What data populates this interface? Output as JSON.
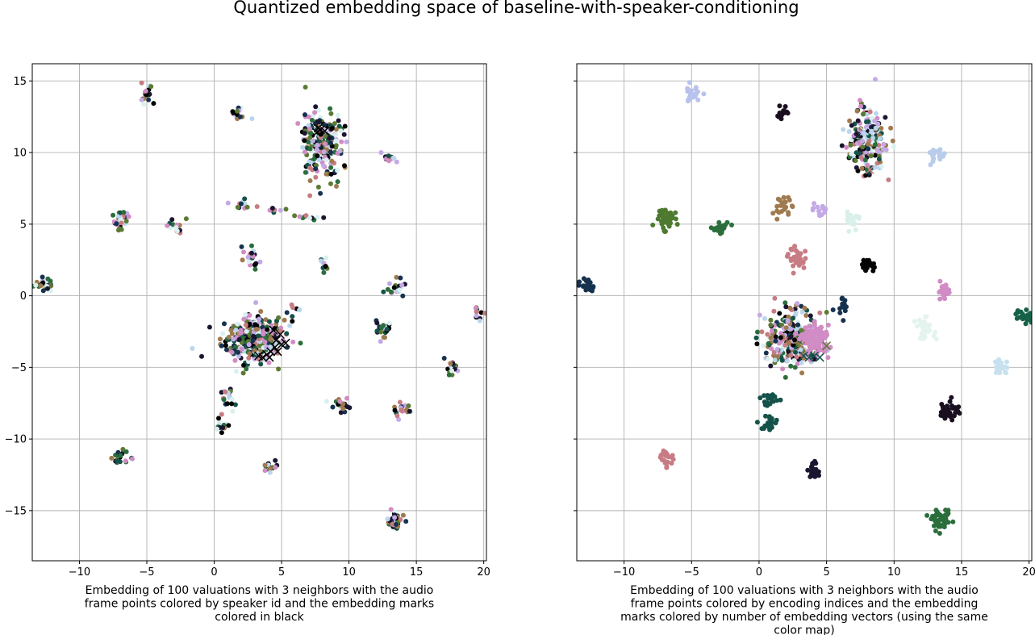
{
  "figure": {
    "title": "Quantized embedding space of baseline-with-speaker-conditioning"
  },
  "chart_data": [
    {
      "type": "scatter",
      "title": "",
      "xlabel": "Embedding of 100 valuations with 3 neighbors with the audio frame points colored by speaker id and the embedding marks colored in black",
      "xlabel_lines": [
        "Embedding of 100 valuations with 3 neighbors with the audio",
        "frame points colored by speaker id and the embedding marks",
        "colored in black"
      ],
      "ylabel": "",
      "xlim": [
        -13.5,
        20.2
      ],
      "ylim": [
        -18.5,
        16.2
      ],
      "xticks": [
        -10,
        -5,
        0,
        5,
        10,
        15,
        20
      ],
      "yticks": [
        15,
        10,
        5,
        0,
        -5,
        -10,
        -15
      ],
      "xtick_labels": [
        "−10",
        "−5",
        "0",
        "5",
        "10",
        "15",
        "20"
      ],
      "ytick_labels": [
        "15",
        "10",
        "5",
        "0",
        "−5",
        "−10",
        "−15"
      ],
      "grid": true,
      "point_coloring": "speaker id",
      "embedding_mark_color": "#000000",
      "palette": [
        "#1a1530",
        "#16324f",
        "#15534a",
        "#2b6e3c",
        "#5b7a33",
        "#a07a4f",
        "#c77c83",
        "#d18cc5",
        "#c3a9e6",
        "#b9d6ec",
        "#d9f0ef",
        "#050505"
      ],
      "clusters": [
        {
          "x": -12.6,
          "y": 0.8,
          "sx": 0.4,
          "sy": 0.25,
          "n": 26
        },
        {
          "x": -7.0,
          "y": 5.3,
          "sx": 0.35,
          "sy": 0.3,
          "n": 30
        },
        {
          "x": -7.0,
          "y": -11.4,
          "sx": 0.35,
          "sy": 0.35,
          "n": 22
        },
        {
          "x": -5.0,
          "y": 14.1,
          "sx": 0.25,
          "sy": 0.3,
          "n": 18
        },
        {
          "x": -2.9,
          "y": 4.8,
          "sx": 0.35,
          "sy": 0.3,
          "n": 14
        },
        {
          "x": 1.8,
          "y": 12.8,
          "sx": 0.35,
          "sy": 0.4,
          "n": 14
        },
        {
          "x": 1.9,
          "y": 6.4,
          "sx": 0.5,
          "sy": 0.2,
          "n": 10
        },
        {
          "x": 4.4,
          "y": 6.0,
          "sx": 0.35,
          "sy": 0.2,
          "n": 7
        },
        {
          "x": 7.0,
          "y": 5.5,
          "sx": 0.5,
          "sy": 0.12,
          "n": 10
        },
        {
          "x": 2.8,
          "y": 2.7,
          "sx": 0.3,
          "sy": 0.35,
          "n": 22
        },
        {
          "x": 8.1,
          "y": 2.1,
          "sx": 0.2,
          "sy": 0.2,
          "n": 10
        },
        {
          "x": 2.8,
          "y": -3.0,
          "sx": 1.1,
          "sy": 0.8,
          "n": 360
        },
        {
          "x": 5.8,
          "y": -0.9,
          "sx": 0.25,
          "sy": 0.3,
          "n": 7
        },
        {
          "x": 8.0,
          "y": 10.7,
          "sx": 0.8,
          "sy": 1.1,
          "n": 220
        },
        {
          "x": 12.9,
          "y": 9.6,
          "sx": 0.3,
          "sy": 0.25,
          "n": 12
        },
        {
          "x": 13.5,
          "y": 0.5,
          "sx": 0.3,
          "sy": 0.3,
          "n": 22
        },
        {
          "x": 12.5,
          "y": -2.4,
          "sx": 0.3,
          "sy": 0.3,
          "n": 22
        },
        {
          "x": 17.7,
          "y": -5.1,
          "sx": 0.3,
          "sy": 0.3,
          "n": 20
        },
        {
          "x": 19.6,
          "y": -1.3,
          "sx": 0.2,
          "sy": 0.3,
          "n": 10
        },
        {
          "x": 9.5,
          "y": -7.6,
          "sx": 0.35,
          "sy": 0.25,
          "n": 22
        },
        {
          "x": 14.0,
          "y": -8.0,
          "sx": 0.35,
          "sy": 0.3,
          "n": 22
        },
        {
          "x": 1.0,
          "y": -7.1,
          "sx": 0.35,
          "sy": 0.4,
          "n": 20
        },
        {
          "x": 0.5,
          "y": -9.1,
          "sx": 0.3,
          "sy": 0.2,
          "n": 14
        },
        {
          "x": 4.2,
          "y": -12.0,
          "sx": 0.3,
          "sy": 0.25,
          "n": 14
        },
        {
          "x": 13.5,
          "y": -15.7,
          "sx": 0.35,
          "sy": 0.35,
          "n": 34
        }
      ],
      "embedding_marks": [
        {
          "x": 4.4,
          "y": -2.4
        },
        {
          "x": 4.9,
          "y": -2.7
        },
        {
          "x": 4.6,
          "y": -3.1
        },
        {
          "x": 5.0,
          "y": -3.4
        },
        {
          "x": 4.5,
          "y": -3.6
        },
        {
          "x": 4.2,
          "y": -3.9
        },
        {
          "x": 3.9,
          "y": -4.1
        },
        {
          "x": 3.6,
          "y": -4.3
        },
        {
          "x": 3.3,
          "y": -4.2
        },
        {
          "x": 4.1,
          "y": -4.3
        },
        {
          "x": 4.7,
          "y": -3.9
        },
        {
          "x": 5.3,
          "y": -3.3
        },
        {
          "x": 7.6,
          "y": 11.4
        },
        {
          "x": 7.9,
          "y": 11.6
        },
        {
          "x": 8.2,
          "y": 11.5
        },
        {
          "x": 7.7,
          "y": 11.7
        }
      ]
    },
    {
      "type": "scatter",
      "title": "",
      "xlabel": "Embedding of 100 valuations with 3 neighbors with the audio frame points colored by encoding indices and the embedding marks colored by number of embedding vectors (using the same color map)",
      "xlabel_lines": [
        "Embedding of 100 valuations with 3 neighbors with the audio",
        "frame points colored by encoding indices and the embedding",
        "marks colored by number of embedding vectors (using the same",
        "color map)"
      ],
      "ylabel": "",
      "xlim": [
        -13.5,
        20.2
      ],
      "ylim": [
        -18.5,
        16.2
      ],
      "xticks": [
        -10,
        -5,
        0,
        5,
        10,
        15,
        20
      ],
      "yticks": [
        15,
        10,
        5,
        0,
        -5,
        -10,
        -15
      ],
      "xtick_labels": [
        "−10",
        "−5",
        "0",
        "5",
        "10",
        "15",
        "20"
      ],
      "ytick_labels": [],
      "grid": true,
      "point_coloring": "encoding indices",
      "palette": [
        "#1a1530",
        "#16324f",
        "#15534a",
        "#2b6e3c",
        "#5b7a33",
        "#a07a4f",
        "#c77c83",
        "#d18cc5",
        "#c3a9e6",
        "#b9d6ec",
        "#d9f0ef",
        "#050505"
      ],
      "clusters": [
        {
          "x": -12.6,
          "y": 0.7,
          "sx": 0.3,
          "sy": 0.3,
          "n": 26,
          "color": "#16324f"
        },
        {
          "x": -7.0,
          "y": 5.4,
          "sx": 0.35,
          "sy": 0.35,
          "n": 40,
          "color": "#4e7a30"
        },
        {
          "x": -2.9,
          "y": 4.7,
          "sx": 0.3,
          "sy": 0.25,
          "n": 26,
          "color": "#2b6e3c"
        },
        {
          "x": -5.0,
          "y": 14.0,
          "sx": 0.35,
          "sy": 0.3,
          "n": 26,
          "color": "#b8c2ec"
        },
        {
          "x": 1.8,
          "y": 12.8,
          "sx": 0.3,
          "sy": 0.2,
          "n": 20,
          "color": "#1a0f1f"
        },
        {
          "x": 1.7,
          "y": 6.2,
          "sx": 0.3,
          "sy": 0.35,
          "n": 22,
          "color": "#a07a4f"
        },
        {
          "x": 4.5,
          "y": 5.9,
          "sx": 0.25,
          "sy": 0.25,
          "n": 14,
          "color": "#c3a9e6"
        },
        {
          "x": 7.0,
          "y": 5.4,
          "sx": 0.3,
          "sy": 0.3,
          "n": 22,
          "color": "#d9f0ea"
        },
        {
          "x": 8.1,
          "y": 2.1,
          "sx": 0.25,
          "sy": 0.2,
          "n": 22,
          "color": "#050505"
        },
        {
          "x": 2.9,
          "y": 2.6,
          "sx": 0.35,
          "sy": 0.4,
          "n": 40,
          "color": "#c77c83"
        },
        {
          "x": 6.0,
          "y": -0.9,
          "sx": 0.3,
          "sy": 0.35,
          "n": 14,
          "color": "#16324f"
        },
        {
          "x": 2.5,
          "y": -3.0,
          "sx": 1.0,
          "sy": 0.9,
          "n": 320
        },
        {
          "x": 4.2,
          "y": -3.1,
          "sx": 0.5,
          "sy": 0.5,
          "n": 110,
          "color": "#d18cc5"
        },
        {
          "x": 8.0,
          "y": 10.9,
          "sx": 0.7,
          "sy": 1.1,
          "n": 220
        },
        {
          "x": 13.2,
          "y": 9.7,
          "sx": 0.3,
          "sy": 0.3,
          "n": 20,
          "color": "#b9ccec"
        },
        {
          "x": 13.6,
          "y": 0.3,
          "sx": 0.25,
          "sy": 0.3,
          "n": 22,
          "color": "#d18cc5"
        },
        {
          "x": 12.3,
          "y": -2.3,
          "sx": 0.35,
          "sy": 0.35,
          "n": 34,
          "color": "#e4f3ee"
        },
        {
          "x": 17.9,
          "y": -5.0,
          "sx": 0.3,
          "sy": 0.25,
          "n": 34,
          "color": "#c7e2ee"
        },
        {
          "x": 19.7,
          "y": -1.4,
          "sx": 0.35,
          "sy": 0.25,
          "n": 22,
          "color": "#176148"
        },
        {
          "x": 0.8,
          "y": -7.2,
          "sx": 0.35,
          "sy": 0.25,
          "n": 18,
          "color": "#15534a"
        },
        {
          "x": 0.8,
          "y": -8.9,
          "sx": 0.3,
          "sy": 0.3,
          "n": 22,
          "color": "#15534a"
        },
        {
          "x": 14.1,
          "y": -8.0,
          "sx": 0.35,
          "sy": 0.35,
          "n": 40,
          "color": "#1a0f1f"
        },
        {
          "x": -6.9,
          "y": -11.3,
          "sx": 0.3,
          "sy": 0.35,
          "n": 22,
          "color": "#c77c83"
        },
        {
          "x": 4.1,
          "y": -12.2,
          "sx": 0.25,
          "sy": 0.3,
          "n": 22,
          "color": "#1a1530"
        },
        {
          "x": 13.5,
          "y": -15.7,
          "sx": 0.35,
          "sy": 0.3,
          "n": 55,
          "color": "#2b6e3c"
        }
      ],
      "embedding_marks": [
        {
          "x": 3.3,
          "y": -4.2,
          "color": "#15534a"
        },
        {
          "x": 3.7,
          "y": -4.3,
          "color": "#15534a"
        },
        {
          "x": 4.1,
          "y": -4.2,
          "color": "#15534a"
        },
        {
          "x": 4.5,
          "y": -4.3,
          "color": "#15534a"
        },
        {
          "x": 3.1,
          "y": -3.5,
          "color": "#a07a4f"
        },
        {
          "x": 5.0,
          "y": -3.5,
          "color": "#5b7a33"
        },
        {
          "x": 7.8,
          "y": 11.5,
          "color": "#b9d6ec"
        },
        {
          "x": 8.2,
          "y": 8.8,
          "color": "#c77c83"
        }
      ]
    }
  ]
}
